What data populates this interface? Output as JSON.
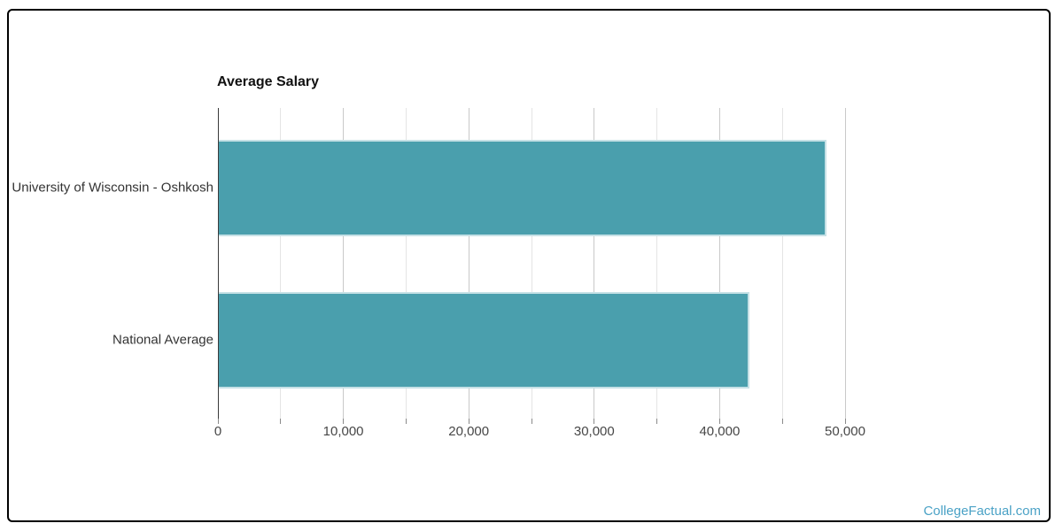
{
  "page": {
    "watermark": {
      "label": "CollegeFactual.com",
      "color": "#4BA2C6"
    }
  },
  "chart_data": {
    "type": "bar",
    "orientation": "horizontal",
    "title": "Average Salary",
    "categories": [
      "University of Wisconsin - Oshkosh",
      "National Average"
    ],
    "values": [
      48500,
      42400
    ],
    "xlabel": "",
    "ylabel": "",
    "xlim": [
      0,
      50000
    ],
    "x_major_ticks": [
      {
        "value": 0,
        "label": "0"
      },
      {
        "value": 10000,
        "label": "10,000"
      },
      {
        "value": 20000,
        "label": "20,000"
      },
      {
        "value": 30000,
        "label": "30,000"
      },
      {
        "value": 40000,
        "label": "40,000"
      },
      {
        "value": 50000,
        "label": "50,000"
      }
    ],
    "x_minor_step": 5000,
    "grid": true,
    "legend": false,
    "bar_color": "#4A9FAD",
    "bar_border_color": "#C6E1E6",
    "axis_line_color": "#3A3A3A",
    "major_grid_color": "#C9C9C9",
    "minor_grid_color": "#E4E4E4"
  }
}
